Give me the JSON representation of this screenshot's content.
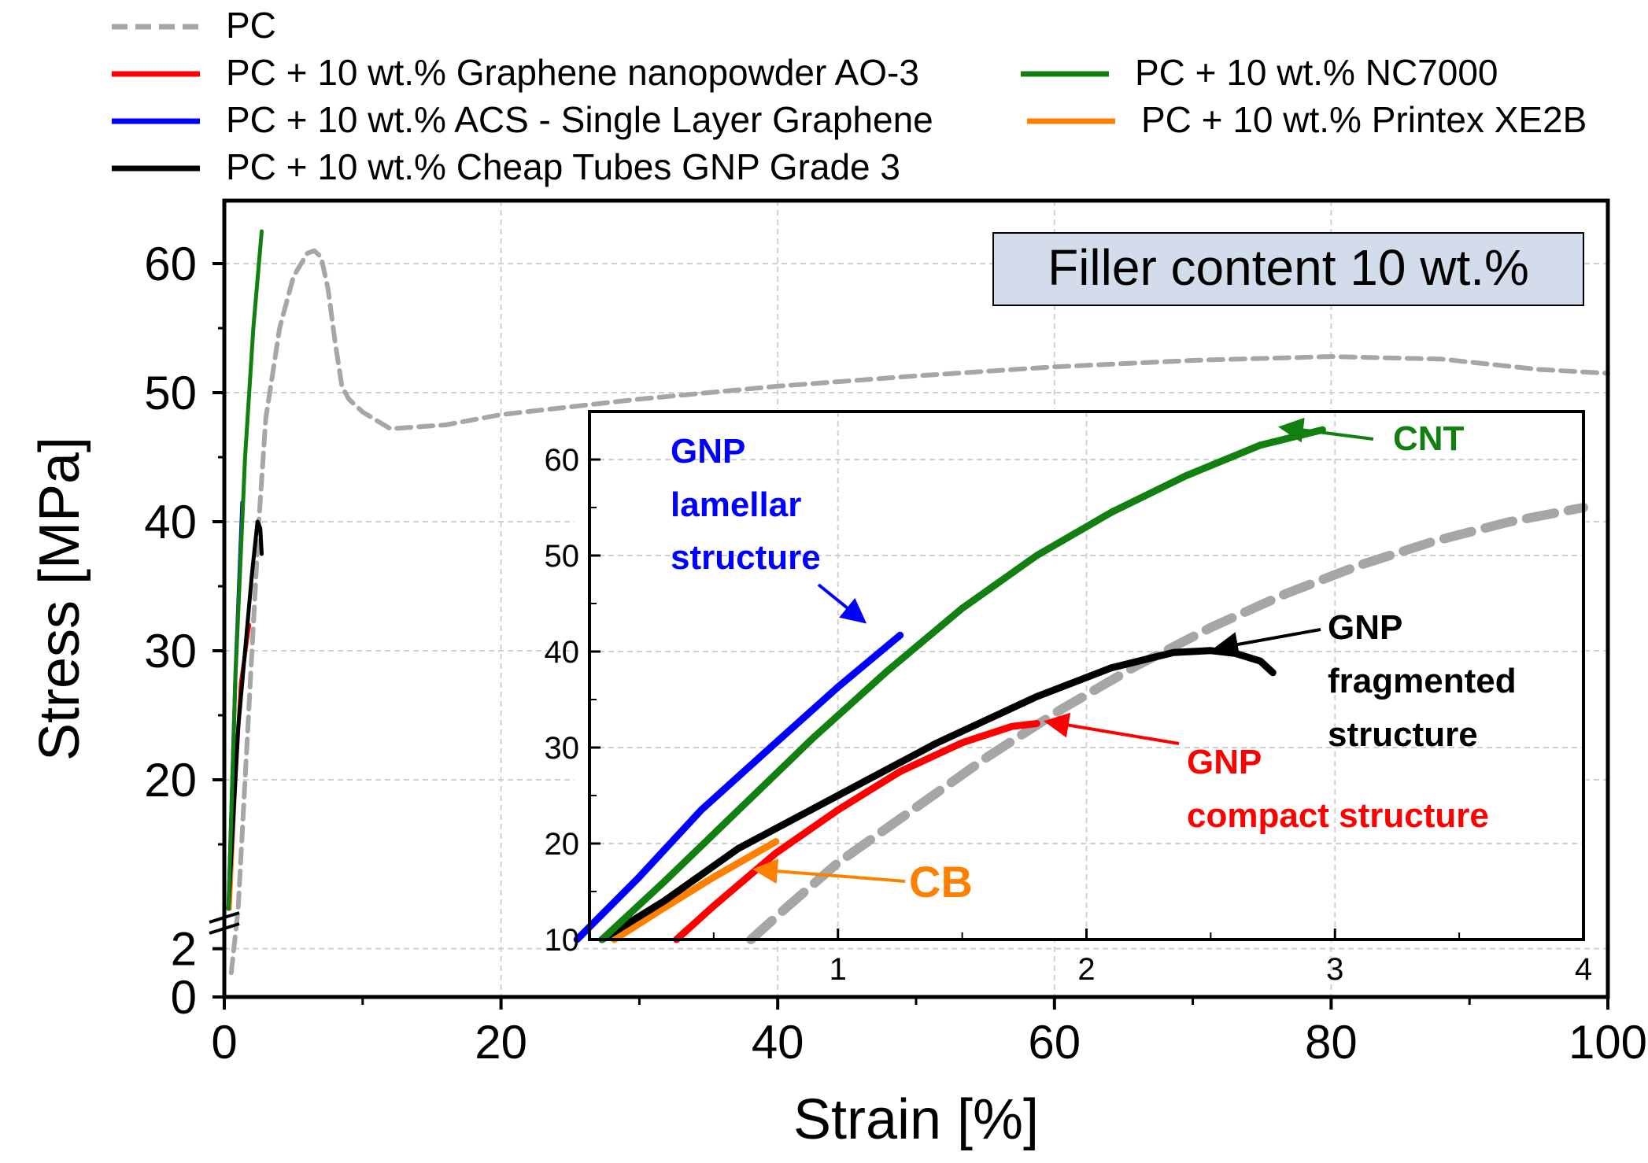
{
  "colors": {
    "pc": "#a6a6a6",
    "ao3": "#ff0000",
    "acs": "#0000ff",
    "ct": "#000000",
    "nc7000": "#118011",
    "xe2b": "#ff8000",
    "box_fill": "#d3dcea"
  },
  "legend": [
    {
      "series": "PC",
      "label": "PC",
      "color": "#a6a6a6",
      "dash": true
    },
    {
      "series": "AO3",
      "label": "PC + 10 wt.% Graphene nanopowder AO-3",
      "color": "#ff0000"
    },
    {
      "series": "ACS",
      "label": "PC + 10 wt.% ACS - Single Layer Graphene",
      "color": "#0000ff"
    },
    {
      "series": "CT",
      "label": "PC + 10 wt.% Cheap Tubes GNP Grade 3",
      "color": "#000000"
    },
    {
      "series": "NC7000",
      "label": "PC + 10 wt.% NC7000",
      "color": "#118011"
    },
    {
      "series": "XE2B",
      "label": "PC + 10 wt.% Printex XE2B",
      "color": "#ff8000"
    }
  ],
  "annotation_box": "Filler content 10 wt.%",
  "inset_labels": {
    "lamellar": [
      "GNP",
      "lamellar",
      "structure"
    ],
    "cnt": [
      "CNT"
    ],
    "fragmented": [
      "GNP",
      "fragmented",
      "structure"
    ],
    "compact": [
      "GNP",
      "compact structure"
    ],
    "cb": [
      "CB"
    ]
  },
  "chart_data": [
    {
      "type": "line",
      "xlabel": "Strain [%]",
      "ylabel": "Stress [MPa]",
      "xlim": [
        0,
        100
      ],
      "ylim_lower": [
        0,
        3
      ],
      "ylim_upper": [
        10,
        65
      ],
      "axis_break": true,
      "xticks": [
        0,
        20,
        40,
        60,
        80,
        100
      ],
      "yticks_lower": [
        0,
        2
      ],
      "yticks_upper": [
        20,
        30,
        40,
        50,
        60
      ],
      "grid": true,
      "legend_position": "top",
      "series": [
        {
          "name": "PC",
          "x": [
            0.5,
            1.0,
            2.0,
            2.5,
            3.0,
            4.0,
            5.0,
            6.0,
            6.5,
            7.0,
            7.5,
            8.0,
            8.5,
            9.0,
            10.0,
            12.0,
            16.0,
            20.0,
            30.0,
            40.0,
            50.0,
            60.0,
            70.0,
            80.0,
            88.0,
            95.0,
            100.0
          ],
          "y": [
            1.0,
            10.0,
            30.0,
            40.0,
            48.0,
            55.0,
            59.0,
            60.8,
            61.0,
            60.5,
            58.0,
            54.0,
            50.5,
            49.5,
            48.5,
            47.2,
            47.5,
            48.3,
            49.5,
            50.5,
            51.3,
            52.0,
            52.5,
            52.8,
            52.6,
            51.8,
            51.5
          ]
        },
        {
          "name": "PC + 10 wt.% Graphene nanopowder AO-3",
          "x": [
            0.3,
            0.8,
            1.2,
            1.8
          ],
          "y": [
            10.0,
            20.0,
            27.5,
            32.0
          ]
        },
        {
          "name": "PC + 10 wt.% ACS - Single Layer Graphene",
          "x": [
            0.3,
            0.8,
            1.3
          ],
          "y": [
            10.0,
            28.0,
            41.5
          ]
        },
        {
          "name": "PC + 10 wt.% Cheap Tubes GNP Grade 3",
          "x": [
            0.3,
            1.0,
            2.0,
            2.4,
            2.6,
            2.7
          ],
          "y": [
            10.0,
            24.0,
            36.0,
            40.0,
            39.5,
            37.5
          ]
        },
        {
          "name": "PC + 10 wt.% NC7000",
          "x": [
            0.3,
            0.8,
            1.5,
            2.1,
            2.7
          ],
          "y": [
            10.0,
            28.0,
            45.0,
            55.0,
            62.5
          ]
        },
        {
          "name": "PC + 10 wt.% Printex XE2B",
          "x": [
            0.4,
            0.8
          ],
          "y": [
            10.0,
            20.0
          ]
        }
      ]
    },
    {
      "type": "line",
      "inset": true,
      "xlim": [
        0,
        4
      ],
      "ylim": [
        10,
        65
      ],
      "xticks": [
        1,
        2,
        3,
        4
      ],
      "yticks": [
        10,
        20,
        30,
        40,
        50,
        60
      ],
      "series": [
        {
          "name": "PC",
          "x": [
            0.65,
            0.8,
            1.0,
            1.3,
            1.6,
            1.9,
            2.2,
            2.5,
            2.8,
            3.1,
            3.4,
            3.7,
            4.0
          ],
          "y": [
            10.0,
            13.5,
            18.0,
            23.5,
            29.0,
            34.0,
            38.5,
            42.5,
            46.0,
            49.0,
            51.5,
            53.5,
            55.0
          ]
        },
        {
          "name": "PC + 10 wt.% Graphene nanopowder AO-3",
          "x": [
            0.35,
            0.5,
            0.75,
            1.0,
            1.25,
            1.5,
            1.7,
            1.8
          ],
          "y": [
            10.0,
            13.5,
            19.0,
            23.5,
            27.5,
            30.5,
            32.2,
            32.5
          ]
        },
        {
          "name": "PC + 10 wt.% ACS - Single Layer Graphene",
          "x": [
            -0.05,
            0.2,
            0.45,
            0.75,
            1.0,
            1.25
          ],
          "y": [
            10.0,
            16.5,
            23.5,
            30.5,
            36.3,
            41.7
          ]
        },
        {
          "name": "PC + 10 wt.% Cheap Tubes GNP Grade 3",
          "x": [
            0.05,
            0.3,
            0.6,
            1.0,
            1.4,
            1.8,
            2.1,
            2.35,
            2.5,
            2.6,
            2.7,
            2.75
          ],
          "y": [
            10.0,
            14.0,
            19.5,
            25.0,
            30.5,
            35.3,
            38.3,
            39.9,
            40.1,
            39.8,
            39.0,
            37.8
          ]
        },
        {
          "name": "PC + 10 wt.% NC7000",
          "x": [
            0.05,
            0.3,
            0.6,
            0.9,
            1.2,
            1.5,
            1.8,
            2.1,
            2.4,
            2.7,
            2.95
          ],
          "y": [
            10.0,
            16.0,
            23.5,
            31.0,
            38.0,
            44.5,
            50.0,
            54.5,
            58.3,
            61.5,
            63.1
          ]
        },
        {
          "name": "PC + 10 wt.% Printex XE2B",
          "x": [
            0.1,
            0.3,
            0.5,
            0.75
          ],
          "y": [
            10.0,
            13.3,
            16.5,
            20.2
          ]
        }
      ]
    }
  ]
}
